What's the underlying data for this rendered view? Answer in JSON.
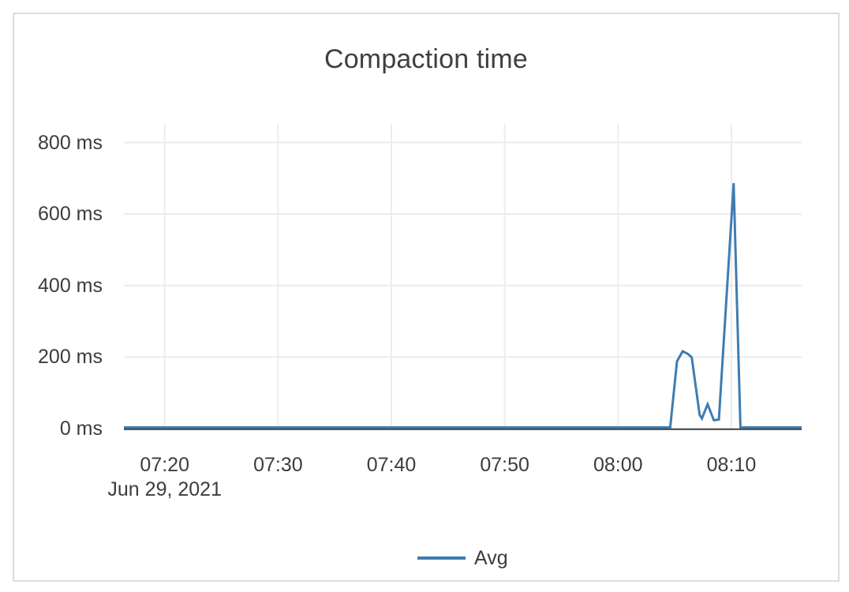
{
  "chart_data": {
    "type": "line",
    "title": "Compaction time",
    "x_axis": {
      "date_label": "Jun 29, 2021",
      "domain_minutes": [
        436.4,
        496.2
      ],
      "ticks": [
        {
          "minutes": 440,
          "label": "07:20"
        },
        {
          "minutes": 450,
          "label": "07:30"
        },
        {
          "minutes": 460,
          "label": "07:40"
        },
        {
          "minutes": 470,
          "label": "07:50"
        },
        {
          "minutes": 480,
          "label": "08:00"
        },
        {
          "minutes": 490,
          "label": "08:10"
        }
      ]
    },
    "y_axis": {
      "unit": "ms",
      "domain": [
        0,
        852
      ],
      "ticks": [
        {
          "value": 0,
          "label": "0 ms"
        },
        {
          "value": 200,
          "label": "200 ms"
        },
        {
          "value": 400,
          "label": "400 ms"
        },
        {
          "value": 600,
          "label": "600 ms"
        },
        {
          "value": 800,
          "label": "800 ms"
        }
      ]
    },
    "series": [
      {
        "name": "Avg",
        "color": "#3E7CB1",
        "points": [
          {
            "t_minutes": 436.4,
            "value_ms": 0
          },
          {
            "t_minutes": 484.6,
            "value_ms": 0
          },
          {
            "t_minutes": 485.2,
            "value_ms": 185
          },
          {
            "t_minutes": 485.7,
            "value_ms": 213
          },
          {
            "t_minutes": 486.15,
            "value_ms": 206
          },
          {
            "t_minutes": 486.5,
            "value_ms": 196
          },
          {
            "t_minutes": 487.2,
            "value_ms": 35
          },
          {
            "t_minutes": 487.4,
            "value_ms": 25
          },
          {
            "t_minutes": 487.9,
            "value_ms": 65
          },
          {
            "t_minutes": 488.45,
            "value_ms": 20
          },
          {
            "t_minutes": 488.9,
            "value_ms": 22
          },
          {
            "t_minutes": 490.2,
            "value_ms": 683
          },
          {
            "t_minutes": 490.8,
            "value_ms": 0
          },
          {
            "t_minutes": 496.2,
            "value_ms": 0
          }
        ]
      }
    ],
    "legend": [
      {
        "label": "Avg",
        "color": "#3E7CB1"
      }
    ],
    "colors": {
      "grid": "#ECECEC",
      "axis_line": "#3D3D3D",
      "text": "#3C3C3C",
      "border": "#DCDCDC",
      "background": "#FFFFFF",
      "line": "#3E7CB1"
    }
  }
}
